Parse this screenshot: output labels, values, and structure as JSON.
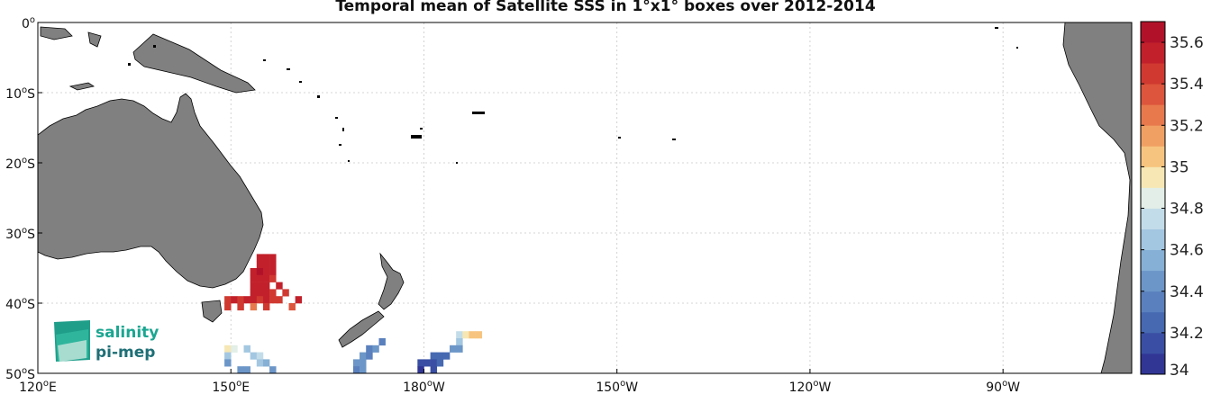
{
  "title": "Temporal mean of Satellite SSS in 1°x1° boxes over 2012-2014",
  "lat_labels": [
    {
      "lat": 0,
      "deg": "0",
      "hem": ""
    },
    {
      "lat": -10,
      "deg": "10",
      "hem": "S"
    },
    {
      "lat": -20,
      "deg": "20",
      "hem": "S"
    },
    {
      "lat": -30,
      "deg": "30",
      "hem": "S"
    },
    {
      "lat": -40,
      "deg": "40",
      "hem": "S"
    },
    {
      "lat": -50,
      "deg": "50",
      "hem": "S"
    }
  ],
  "lon_labels": [
    {
      "lon": 120,
      "deg": "120",
      "hem": "E"
    },
    {
      "lon": 150,
      "deg": "150",
      "hem": "E"
    },
    {
      "lon": 180,
      "deg": "180",
      "hem": "W"
    },
    {
      "lon": 210,
      "deg": "150",
      "hem": "W"
    },
    {
      "lon": 240,
      "deg": "120",
      "hem": "W"
    },
    {
      "lon": 270,
      "deg": "90",
      "hem": "W"
    }
  ],
  "extent": {
    "lon": [
      120,
      290
    ],
    "lat": [
      -50,
      0
    ]
  },
  "colorbar": {
    "min": 34,
    "max": 35.7,
    "ticks": [
      "34",
      "34.2",
      "34.4",
      "34.6",
      "34.8",
      "35",
      "35.2",
      "35.4",
      "35.6"
    ],
    "colors": [
      "#313695",
      "#3a4fa3",
      "#4669b1",
      "#5a80bd",
      "#6c96c8",
      "#86b0d5",
      "#a3c7e1",
      "#c3dce9",
      "#e2eee7",
      "#f6e7b4",
      "#f7c47f",
      "#f0a062",
      "#e7794d",
      "#dd553c",
      "#d03930",
      "#c2212b",
      "#b1122a"
    ]
  },
  "logo": {
    "line1": "salinity",
    "line2": "pi-mep"
  },
  "sss_boxes": [
    {
      "lon": 154,
      "lat": -33,
      "sss": 35.6
    },
    {
      "lon": 155,
      "lat": -33,
      "sss": 35.6
    },
    {
      "lon": 156,
      "lat": -33,
      "sss": 35.6
    },
    {
      "lon": 154,
      "lat": -34,
      "sss": 35.6
    },
    {
      "lon": 155,
      "lat": -34,
      "sss": 35.6
    },
    {
      "lon": 156,
      "lat": -34,
      "sss": 35.6
    },
    {
      "lon": 153,
      "lat": -35,
      "sss": 35.6
    },
    {
      "lon": 154,
      "lat": -35,
      "sss": 35.65
    },
    {
      "lon": 155,
      "lat": -35,
      "sss": 35.6
    },
    {
      "lon": 156,
      "lat": -35,
      "sss": 35.55
    },
    {
      "lon": 153,
      "lat": -36,
      "sss": 35.6
    },
    {
      "lon": 154,
      "lat": -36,
      "sss": 35.6
    },
    {
      "lon": 155,
      "lat": -36,
      "sss": 35.6
    },
    {
      "lon": 156,
      "lat": -36,
      "sss": 35.5
    },
    {
      "lon": 153,
      "lat": -37,
      "sss": 35.6
    },
    {
      "lon": 154,
      "lat": -37,
      "sss": 35.6
    },
    {
      "lon": 155,
      "lat": -37,
      "sss": 35.55
    },
    {
      "lon": 157,
      "lat": -37,
      "sss": 35.55
    },
    {
      "lon": 153,
      "lat": -38,
      "sss": 35.6
    },
    {
      "lon": 154,
      "lat": -38,
      "sss": 35.6
    },
    {
      "lon": 155,
      "lat": -38,
      "sss": 35.6
    },
    {
      "lon": 156,
      "lat": -38,
      "sss": 35.5
    },
    {
      "lon": 158,
      "lat": -38,
      "sss": 35.45
    },
    {
      "lon": 149,
      "lat": -39,
      "sss": 35.5
    },
    {
      "lon": 150,
      "lat": -39,
      "sss": 35.55
    },
    {
      "lon": 151,
      "lat": -39,
      "sss": 35.5
    },
    {
      "lon": 152,
      "lat": -39,
      "sss": 35.6
    },
    {
      "lon": 153,
      "lat": -39,
      "sss": 35.55
    },
    {
      "lon": 154,
      "lat": -39,
      "sss": 35.5
    },
    {
      "lon": 155,
      "lat": -39,
      "sss": 35.55
    },
    {
      "lon": 156,
      "lat": -39,
      "sss": 35.5
    },
    {
      "lon": 157,
      "lat": -39,
      "sss": 35.5
    },
    {
      "lon": 160,
      "lat": -39,
      "sss": 35.6
    },
    {
      "lon": 149,
      "lat": -40,
      "sss": 35.5
    },
    {
      "lon": 151,
      "lat": -40,
      "sss": 35.5
    },
    {
      "lon": 153,
      "lat": -40,
      "sss": 35.2
    },
    {
      "lon": 155,
      "lat": -40,
      "sss": 35.5
    },
    {
      "lon": 159,
      "lat": -40,
      "sss": 35.4
    },
    {
      "lon": 149,
      "lat": -46,
      "sss": 34.95
    },
    {
      "lon": 150,
      "lat": -46,
      "sss": 34.85
    },
    {
      "lon": 152,
      "lat": -46,
      "sss": 34.6
    },
    {
      "lon": 149,
      "lat": -47,
      "sss": 34.6
    },
    {
      "lon": 153,
      "lat": -47,
      "sss": 34.65
    },
    {
      "lon": 154,
      "lat": -47,
      "sss": 34.7
    },
    {
      "lon": 149,
      "lat": -48,
      "sss": 34.5
    },
    {
      "lon": 154,
      "lat": -48,
      "sss": 34.6
    },
    {
      "lon": 155,
      "lat": -48,
      "sss": 34.55
    },
    {
      "lon": 151,
      "lat": -49,
      "sss": 34.45
    },
    {
      "lon": 152,
      "lat": -49,
      "sss": 34.5
    },
    {
      "lon": 156,
      "lat": -49,
      "sss": 34.5
    },
    {
      "lon": 173,
      "lat": -45,
      "sss": 34.4
    },
    {
      "lon": 171,
      "lat": -46,
      "sss": 34.35
    },
    {
      "lon": 172,
      "lat": -46,
      "sss": 34.45
    },
    {
      "lon": 170,
      "lat": -47,
      "sss": 34.5
    },
    {
      "lon": 171,
      "lat": -47,
      "sss": 34.35
    },
    {
      "lon": 169,
      "lat": -48,
      "sss": 34.45
    },
    {
      "lon": 170,
      "lat": -48,
      "sss": 34.5
    },
    {
      "lon": 169,
      "lat": -49,
      "sss": 34.4
    },
    {
      "lon": 170,
      "lat": -49,
      "sss": 34.5
    },
    {
      "lon": 185,
      "lat": -44,
      "sss": 34.75
    },
    {
      "lon": 186,
      "lat": -44,
      "sss": 35.0
    },
    {
      "lon": 187,
      "lat": -44,
      "sss": 35.1
    },
    {
      "lon": 188,
      "lat": -44,
      "sss": 35.05
    },
    {
      "lon": 185,
      "lat": -45,
      "sss": 34.6
    },
    {
      "lon": 184,
      "lat": -46,
      "sss": 34.45
    },
    {
      "lon": 185,
      "lat": -46,
      "sss": 34.45
    },
    {
      "lon": 181,
      "lat": -47,
      "sss": 34.3
    },
    {
      "lon": 182,
      "lat": -47,
      "sss": 34.3
    },
    {
      "lon": 183,
      "lat": -47,
      "sss": 34.2
    },
    {
      "lon": 179,
      "lat": -48,
      "sss": 34.15
    },
    {
      "lon": 180,
      "lat": -48,
      "sss": 34.1
    },
    {
      "lon": 181,
      "lat": -48,
      "sss": 34.1
    },
    {
      "lon": 182,
      "lat": -48,
      "sss": 34.2
    },
    {
      "lon": 179,
      "lat": -49,
      "sss": 34.05
    },
    {
      "lon": 181,
      "lat": -49,
      "sss": 34.1
    },
    {
      "lon": 180,
      "lat": -50,
      "sss": 34.1
    }
  ]
}
